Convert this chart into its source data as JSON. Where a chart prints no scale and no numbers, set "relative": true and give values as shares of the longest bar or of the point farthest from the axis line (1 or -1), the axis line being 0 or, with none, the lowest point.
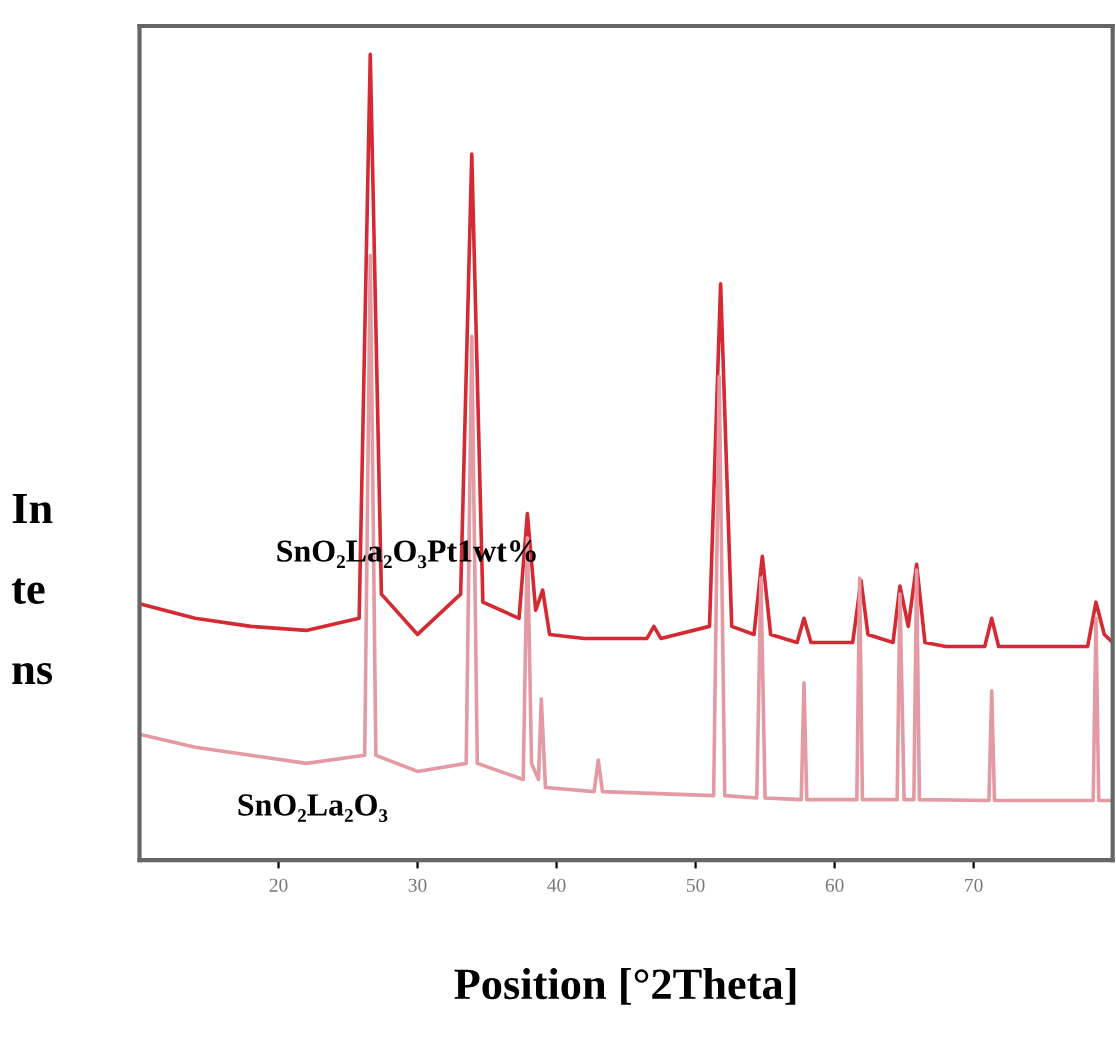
{
  "chart_data": {
    "type": "line",
    "relative": true,
    "xlabel": "Position [°2Theta]",
    "ylabel": "In\nte\nns",
    "xlim": [
      10,
      80
    ],
    "xticks": [
      20,
      30,
      40,
      50,
      60,
      70
    ],
    "tick_labels": "x",
    "grid": false,
    "legend": false,
    "series": [
      {
        "name": "SnO₂La₂O₃Pt1wt%",
        "color": "#d42a34",
        "x": [
          10,
          14,
          18,
          22,
          25.8,
          26.6,
          27.4,
          30,
          33.1,
          33.9,
          34.7,
          37.3,
          37.9,
          38.5,
          39.0,
          39.5,
          42,
          46.5,
          47,
          47.5,
          51.0,
          51.8,
          52.6,
          54.2,
          54.8,
          55.4,
          57.3,
          57.8,
          58.3,
          61.3,
          61.9,
          62.4,
          64.2,
          64.7,
          65.3,
          65.9,
          66.5,
          68,
          70.8,
          71.3,
          71.8,
          78.2,
          78.8,
          79.4,
          80
        ],
        "values": [
          0.318,
          0.3,
          0.29,
          0.285,
          0.3,
          1.0,
          0.33,
          0.28,
          0.33,
          0.876,
          0.32,
          0.3,
          0.43,
          0.31,
          0.335,
          0.28,
          0.275,
          0.275,
          0.29,
          0.275,
          0.29,
          0.715,
          0.29,
          0.28,
          0.377,
          0.28,
          0.27,
          0.3,
          0.27,
          0.27,
          0.347,
          0.28,
          0.27,
          0.34,
          0.29,
          0.367,
          0.27,
          0.265,
          0.265,
          0.3,
          0.265,
          0.265,
          0.32,
          0.28,
          0.27
        ]
      },
      {
        "name": "SnO₂La₂O₃",
        "color": "#e39aa2",
        "x": [
          10,
          14,
          18,
          22,
          26.2,
          26.6,
          27.0,
          30,
          33.5,
          33.9,
          34.3,
          37.6,
          37.9,
          38.2,
          38.7,
          38.9,
          39.2,
          42.7,
          43,
          43.3,
          51.3,
          51.7,
          52.1,
          54.4,
          54.7,
          55.0,
          57.6,
          57.8,
          58.0,
          61.6,
          61.8,
          62.0,
          64.5,
          64.7,
          65.0,
          65.7,
          65.9,
          66.1,
          71.1,
          71.3,
          71.5,
          78.6,
          78.8,
          79.0,
          80
        ],
        "values": [
          0.156,
          0.14,
          0.13,
          0.12,
          0.13,
          0.75,
          0.13,
          0.11,
          0.12,
          0.65,
          0.12,
          0.1,
          0.4,
          0.12,
          0.1,
          0.2,
          0.09,
          0.085,
          0.124,
          0.085,
          0.08,
          0.6,
          0.08,
          0.077,
          0.35,
          0.077,
          0.075,
          0.22,
          0.075,
          0.075,
          0.35,
          0.075,
          0.075,
          0.33,
          0.075,
          0.075,
          0.36,
          0.075,
          0.074,
          0.21,
          0.074,
          0.074,
          0.3,
          0.074,
          0.074
        ]
      }
    ]
  }
}
